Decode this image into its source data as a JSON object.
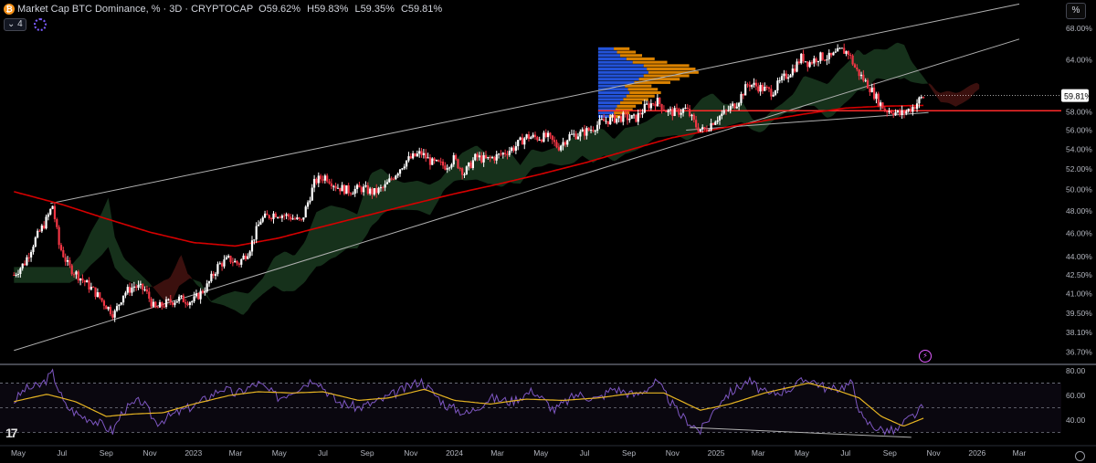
{
  "header": {
    "title": "Market Cap BTC Dominance, % · 3D · CRYPTOCAP",
    "open_label": "O",
    "open": "59.62%",
    "high_label": "H",
    "high": "59.83%",
    "low_label": "L",
    "low": "59.35%",
    "close_label": "C",
    "close": "59.81%",
    "indicator_count": "4",
    "scale_mode": "%"
  },
  "colors": {
    "background": "#000000",
    "candle_up": "#ffffff",
    "candle_down": "#f23645",
    "ma_line": "#d50000",
    "support_line": "#ff2a2a",
    "channel_lines": "#b0b0b0",
    "cloud_bull": "#1b3d22",
    "cloud_bear": "#4a1412",
    "vp_blue": "#2962ff",
    "vp_orange": "#ff9800",
    "rsi_line": "#7e57c2",
    "rsi_ma": "#e6b422",
    "last_price_bg": "#ffffff",
    "rsi_band": "#7e57c2"
  },
  "chart_data": [
    {
      "type": "candlestick",
      "title": "Market Cap BTC Dominance, %",
      "interval": "3D",
      "x_ticks": [
        "May",
        "Jul",
        "Sep",
        "Nov",
        "2023",
        "Mar",
        "May",
        "Jul",
        "Sep",
        "Nov",
        "2024",
        "Mar",
        "May",
        "Jul",
        "Sep",
        "Nov",
        "2025",
        "Mar",
        "May",
        "Jul",
        "Sep",
        "Nov",
        "2026",
        "Mar"
      ],
      "y_ticks": [
        "68.00%",
        "64.00%",
        "60.00%",
        "58.00%",
        "56.00%",
        "54.00%",
        "52.00%",
        "50.00%",
        "48.00%",
        "46.00%",
        "44.00%",
        "42.50%",
        "41.00%",
        "39.50%",
        "38.10%",
        "36.70%"
      ],
      "y_scale": "log",
      "ylim": [
        35.9,
        71.5
      ],
      "last_price": "59.81%",
      "close_path": [
        [
          "2022-04-25",
          42.5
        ],
        [
          "2022-05-10",
          43.5
        ],
        [
          "2022-05-25",
          45.5
        ],
        [
          "2022-06-08",
          47
        ],
        [
          "2022-06-18",
          48.5
        ],
        [
          "2022-06-27",
          45
        ],
        [
          "2022-07-10",
          43.2
        ],
        [
          "2022-07-28",
          42.2
        ],
        [
          "2022-08-15",
          41.2
        ],
        [
          "2022-08-30",
          40.2
        ],
        [
          "2022-09-12",
          39.4
        ],
        [
          "2022-09-25",
          41
        ],
        [
          "2022-10-10",
          41.6
        ],
        [
          "2022-10-25",
          41.3
        ],
        [
          "2022-11-08",
          39.8
        ],
        [
          "2022-11-25",
          40.3
        ],
        [
          "2022-12-12",
          40.6
        ],
        [
          "2022-12-31",
          40.4
        ],
        [
          "2023-01-20",
          41.6
        ],
        [
          "2023-02-05",
          43.3
        ],
        [
          "2023-02-20",
          43.8
        ],
        [
          "2023-03-05",
          43.4
        ],
        [
          "2023-03-20",
          44.6
        ],
        [
          "2023-04-05",
          47.2
        ],
        [
          "2023-04-25",
          47.8
        ],
        [
          "2023-05-15",
          47.5
        ],
        [
          "2023-06-01",
          47
        ],
        [
          "2023-06-20",
          50.8
        ],
        [
          "2023-07-05",
          51.3
        ],
        [
          "2023-07-20",
          50.3
        ],
        [
          "2023-08-05",
          49.9
        ],
        [
          "2023-08-25",
          50.1
        ],
        [
          "2023-09-10",
          49.7
        ],
        [
          "2023-09-25",
          50.2
        ],
        [
          "2023-10-10",
          51.5
        ],
        [
          "2023-10-25",
          52.8
        ],
        [
          "2023-11-15",
          53.6
        ],
        [
          "2023-12-01",
          52.6
        ],
        [
          "2023-12-20",
          52.3
        ],
        [
          "2023-12-31",
          53
        ],
        [
          "2024-01-15",
          51.6
        ],
        [
          "2024-01-31",
          53.2
        ],
        [
          "2024-02-15",
          52.9
        ],
        [
          "2024-03-05",
          53.4
        ],
        [
          "2024-03-25",
          54.2
        ],
        [
          "2024-04-10",
          55.3
        ],
        [
          "2024-04-25",
          55.2
        ],
        [
          "2024-05-10",
          55.3
        ],
        [
          "2024-05-25",
          54.2
        ],
        [
          "2024-06-10",
          55.4
        ],
        [
          "2024-06-25",
          55.6
        ],
        [
          "2024-07-10",
          56.1
        ],
        [
          "2024-07-25",
          56.9
        ],
        [
          "2024-08-10",
          57.2
        ],
        [
          "2024-08-25",
          57.4
        ],
        [
          "2024-09-10",
          57.2
        ],
        [
          "2024-09-25",
          58.6
        ],
        [
          "2024-10-10",
          59.2
        ],
        [
          "2024-10-25",
          58
        ],
        [
          "2024-11-05",
          57.9
        ],
        [
          "2024-11-20",
          58.3
        ],
        [
          "2024-12-05",
          56.3
        ],
        [
          "2024-12-15",
          55.9
        ],
        [
          "2024-12-31",
          57.2
        ],
        [
          "2025-01-15",
          58
        ],
        [
          "2025-01-31",
          59.1
        ],
        [
          "2025-02-15",
          61.2
        ],
        [
          "2025-03-01",
          60.8
        ],
        [
          "2025-03-20",
          60.2
        ],
        [
          "2025-04-05",
          61.8
        ],
        [
          "2025-04-20",
          63
        ],
        [
          "2025-05-01",
          64.4
        ],
        [
          "2025-05-10",
          63.6
        ],
        [
          "2025-05-25",
          64.4
        ],
        [
          "2025-06-10",
          64.3
        ],
        [
          "2025-06-25",
          65.2
        ],
        [
          "2025-07-05",
          64.9
        ],
        [
          "2025-07-15",
          62.9
        ],
        [
          "2025-07-25",
          61.8
        ],
        [
          "2025-08-05",
          60.6
        ],
        [
          "2025-08-15",
          59.3
        ],
        [
          "2025-08-25",
          58.2
        ],
        [
          "2025-09-05",
          58.1
        ],
        [
          "2025-09-15",
          57.7
        ],
        [
          "2025-09-25",
          58.1
        ],
        [
          "2025-10-05",
          58.6
        ],
        [
          "2025-10-12",
          59.3
        ],
        [
          "2025-10-20",
          59.81
        ]
      ],
      "moving_average_path": [
        [
          "2022-04-25",
          49.8
        ],
        [
          "2022-07-01",
          48.6
        ],
        [
          "2022-09-01",
          47.3
        ],
        [
          "2022-11-01",
          46.1
        ],
        [
          "2023-01-01",
          45.2
        ],
        [
          "2023-03-01",
          44.9
        ],
        [
          "2023-05-01",
          45.6
        ],
        [
          "2023-07-01",
          46.6
        ],
        [
          "2023-09-01",
          47.6
        ],
        [
          "2023-11-01",
          48.6
        ],
        [
          "2024-01-01",
          49.6
        ],
        [
          "2024-03-01",
          50.5
        ],
        [
          "2024-05-01",
          51.5
        ],
        [
          "2024-07-01",
          52.6
        ],
        [
          "2024-09-01",
          53.9
        ],
        [
          "2024-11-01",
          55.2
        ],
        [
          "2025-01-01",
          56.1
        ],
        [
          "2025-03-01",
          56.9
        ],
        [
          "2025-05-01",
          57.7
        ],
        [
          "2025-07-01",
          58.4
        ],
        [
          "2025-08-20",
          58.6
        ],
        [
          "2025-10-20",
          58.7
        ]
      ],
      "horizontal_support": 58.1,
      "channel_upper": [
        [
          "2022-06-15",
          48.7
        ],
        [
          "2026-03-01",
          71.2
        ]
      ],
      "channel_lower": [
        [
          "2022-04-25",
          36.8
        ],
        [
          "2026-03-01",
          66.6
        ]
      ],
      "trendline_short": [
        [
          "2024-11-20",
          56.0
        ],
        [
          "2025-10-25",
          57.9
        ]
      ],
      "volume_profile": {
        "price_range": [
          57.3,
          65.6
        ],
        "rows_volume": [
          0.35,
          0.5,
          0.55,
          0.6,
          0.7,
          0.8,
          0.9,
          1,
          0.95,
          0.85,
          1.15,
          1.3,
          1.45,
          1.6,
          1.55,
          1.45,
          1.1,
          0.9,
          0.7,
          0.6,
          0.5
        ]
      }
    },
    {
      "type": "line",
      "title": "RSI",
      "y_ticks": [
        "80.00",
        "60.00",
        "40.00"
      ],
      "ylim": [
        20,
        83
      ],
      "levels": [
        70,
        50,
        30
      ],
      "series": [
        {
          "values": [
            [
              "2022-04-25",
              55
            ],
            [
              "2022-05-10",
              65
            ],
            [
              "2022-06-01",
              68
            ],
            [
              "2022-06-18",
              78
            ],
            [
              "2022-07-05",
              52
            ],
            [
              "2022-07-25",
              44
            ],
            [
              "2022-08-15",
              40
            ],
            [
              "2022-09-10",
              31
            ],
            [
              "2022-09-25",
              48
            ],
            [
              "2022-10-20",
              56
            ],
            [
              "2022-11-10",
              38
            ],
            [
              "2022-12-10",
              46
            ],
            [
              "2023-01-10",
              54
            ],
            [
              "2023-02-10",
              66
            ],
            [
              "2023-03-01",
              61
            ],
            [
              "2023-04-01",
              70
            ],
            [
              "2023-05-01",
              58
            ],
            [
              "2023-06-20",
              74
            ],
            [
              "2023-07-20",
              55
            ],
            [
              "2023-08-20",
              50
            ],
            [
              "2023-09-20",
              56
            ],
            [
              "2023-10-25",
              66
            ],
            [
              "2023-11-15",
              72
            ],
            [
              "2023-12-20",
              52
            ],
            [
              "2024-01-20",
              45
            ],
            [
              "2024-02-20",
              58
            ],
            [
              "2024-03-20",
              55
            ],
            [
              "2024-04-20",
              64
            ],
            [
              "2024-05-20",
              48
            ],
            [
              "2024-06-20",
              61
            ],
            [
              "2024-07-20",
              57
            ],
            [
              "2024-08-10",
              66
            ],
            [
              "2024-09-10",
              60
            ],
            [
              "2024-10-10",
              71
            ],
            [
              "2024-11-10",
              45
            ],
            [
              "2024-12-10",
              31
            ],
            [
              "2025-01-10",
              58
            ],
            [
              "2025-02-15",
              72
            ],
            [
              "2025-03-15",
              60
            ],
            [
              "2025-04-15",
              66
            ],
            [
              "2025-05-10",
              74
            ],
            [
              "2025-06-10",
              64
            ],
            [
              "2025-07-10",
              70
            ],
            [
              "2025-07-25",
              40
            ],
            [
              "2025-08-20",
              32
            ],
            [
              "2025-09-10",
              31
            ],
            [
              "2025-09-25",
              40
            ],
            [
              "2025-10-10",
              46
            ],
            [
              "2025-10-20",
              52
            ]
          ]
        },
        {
          "values": [
            [
              "2022-04-25",
              55
            ],
            [
              "2022-06-10",
              61
            ],
            [
              "2022-07-20",
              55
            ],
            [
              "2022-09-01",
              43
            ],
            [
              "2022-10-10",
              45
            ],
            [
              "2022-11-20",
              46
            ],
            [
              "2023-01-01",
              53
            ],
            [
              "2023-02-20",
              60
            ],
            [
              "2023-04-01",
              63
            ],
            [
              "2023-05-20",
              62
            ],
            [
              "2023-07-01",
              63
            ],
            [
              "2023-08-20",
              56
            ],
            [
              "2023-10-01",
              58
            ],
            [
              "2023-11-20",
              65
            ],
            [
              "2024-01-01",
              56
            ],
            [
              "2024-02-20",
              53
            ],
            [
              "2024-04-10",
              57
            ],
            [
              "2024-06-01",
              56
            ],
            [
              "2024-07-20",
              58
            ],
            [
              "2024-09-10",
              62
            ],
            [
              "2024-10-20",
              62
            ],
            [
              "2024-12-10",
              48
            ],
            [
              "2025-01-20",
              53
            ],
            [
              "2025-03-10",
              62
            ],
            [
              "2025-05-10",
              70
            ],
            [
              "2025-06-20",
              64
            ],
            [
              "2025-07-20",
              58
            ],
            [
              "2025-08-20",
              43
            ],
            [
              "2025-09-20",
              35
            ],
            [
              "2025-10-20",
              42
            ]
          ]
        }
      ],
      "divergence_line": [
        [
          "2024-11-25",
          34
        ],
        [
          "2025-10-01",
          26
        ]
      ]
    }
  ]
}
